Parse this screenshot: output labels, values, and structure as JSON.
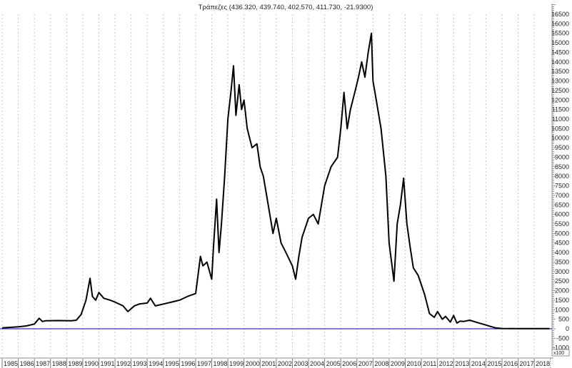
{
  "chart_data": {
    "type": "line",
    "title": "Τράπεζες (436.320, 439.740, 402.570, 411.730, -21.9300)",
    "xlabel": "",
    "ylabel": "",
    "y_scale_label": "x100",
    "xlim": [
      1985,
      2018.95
    ],
    "ylim": [
      -1000,
      17000
    ],
    "grid": "vertical dotted at years",
    "x_ticks": [
      "1985",
      "1986",
      "1987",
      "1988",
      "1989",
      "1990",
      "1991",
      "1992",
      "1993",
      "1994",
      "1995",
      "1996",
      "1997",
      "1998",
      "1999",
      "2000",
      "2001",
      "2002",
      "2003",
      "2004",
      "2005",
      "2006",
      "2007",
      "2008",
      "2009",
      "2010",
      "2011",
      "2012",
      "2013",
      "2014",
      "2015",
      "2016",
      "2017",
      "2018"
    ],
    "y_ticks": [
      16500,
      16000,
      15500,
      15000,
      14500,
      14000,
      13500,
      13000,
      12500,
      12000,
      11500,
      11000,
      10500,
      10000,
      9500,
      9000,
      8500,
      8000,
      7500,
      7000,
      6500,
      6000,
      5500,
      5000,
      4500,
      4000,
      3500,
      3000,
      2500,
      2000,
      1500,
      1000,
      500,
      0,
      -500,
      -1000
    ],
    "reference_line": {
      "value": 0,
      "color": "#2d2dd6"
    },
    "line_color": "#000000",
    "series": [
      {
        "name": "Τράπεζες",
        "x": [
          1985.0,
          1986.0,
          1986.5,
          1987.0,
          1987.3,
          1987.5,
          1987.7,
          1988.5,
          1989.3,
          1989.6,
          1989.9,
          1990.2,
          1990.45,
          1990.6,
          1990.8,
          1991.0,
          1991.3,
          1991.7,
          1992.0,
          1992.5,
          1992.8,
          1993.2,
          1993.5,
          1994.0,
          1994.2,
          1994.5,
          1995.0,
          1995.5,
          1996.0,
          1996.5,
          1997.0,
          1997.3,
          1997.45,
          1997.7,
          1998.0,
          1998.1,
          1998.3,
          1998.45,
          1998.6,
          1998.8,
          1999.0,
          1999.2,
          1999.35,
          1999.5,
          1999.7,
          1999.85,
          2000.0,
          2000.2,
          2000.5,
          2000.8,
          2001.0,
          2001.2,
          2001.5,
          2001.8,
          2002.0,
          2002.3,
          2002.6,
          2003.0,
          2003.2,
          2003.4,
          2003.6,
          2004.0,
          2004.3,
          2004.6,
          2005.0,
          2005.4,
          2005.8,
          2006.0,
          2006.2,
          2006.4,
          2006.6,
          2006.9,
          2007.1,
          2007.3,
          2007.5,
          2007.7,
          2007.9,
          2008.0,
          2008.2,
          2008.5,
          2008.8,
          2009.0,
          2009.3,
          2009.5,
          2009.7,
          2009.9,
          2010.1,
          2010.3,
          2010.5,
          2010.8,
          2011.0,
          2011.2,
          2011.5,
          2011.8,
          2012.0,
          2012.3,
          2012.5,
          2012.8,
          2013.0,
          2013.2,
          2013.4,
          2013.6,
          2014.0,
          2014.5,
          2015.0,
          2015.3,
          2015.6,
          2016.0,
          2017.0,
          2018.0,
          2018.95
        ],
        "values": [
          50,
          100,
          150,
          250,
          550,
          380,
          420,
          430,
          420,
          450,
          750,
          1500,
          2650,
          1700,
          1500,
          1900,
          1600,
          1500,
          1400,
          1200,
          900,
          1200,
          1300,
          1350,
          1600,
          1200,
          1300,
          1400,
          1500,
          1700,
          1850,
          3800,
          3300,
          3500,
          2600,
          4200,
          6800,
          4000,
          5500,
          8000,
          11000,
          12500,
          13800,
          11200,
          12800,
          11500,
          12000,
          10500,
          9500,
          9700,
          8500,
          8000,
          6500,
          5000,
          5800,
          4500,
          4000,
          3300,
          2600,
          3800,
          4800,
          5800,
          6000,
          5500,
          7500,
          8500,
          9000,
          10500,
          12400,
          10500,
          11500,
          12500,
          13200,
          14000,
          13200,
          14500,
          15500,
          13000,
          12000,
          10500,
          8000,
          4500,
          2500,
          5500,
          6500,
          7900,
          5500,
          4300,
          3200,
          2800,
          2300,
          1800,
          800,
          600,
          900,
          500,
          650,
          350,
          700,
          300,
          400,
          380,
          450,
          320,
          200,
          120,
          50,
          15,
          10,
          10,
          10
        ]
      }
    ]
  }
}
